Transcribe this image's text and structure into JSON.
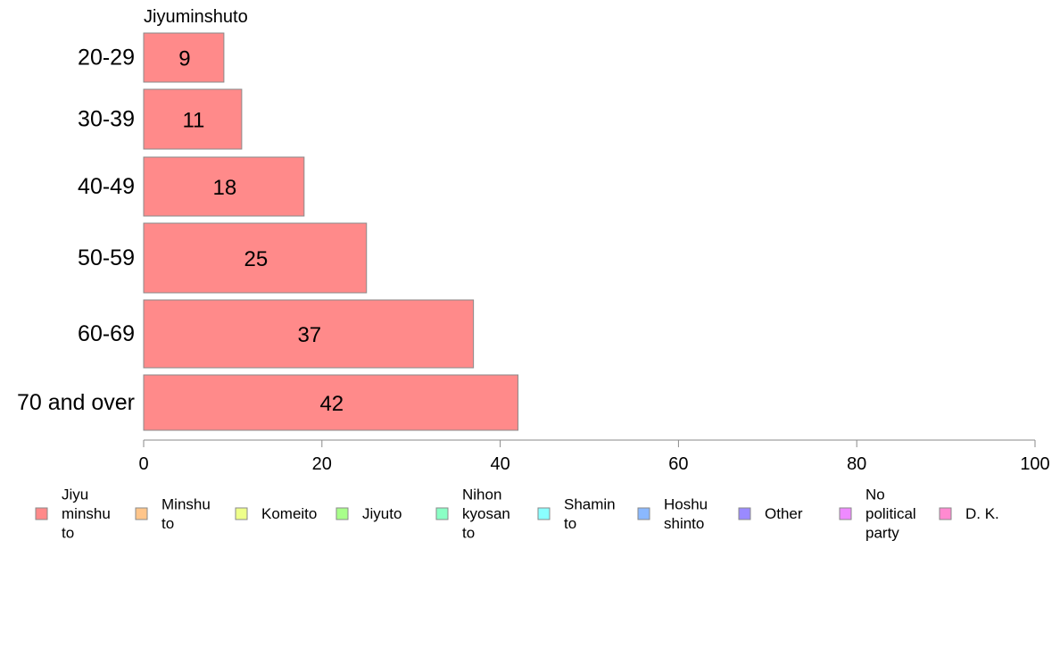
{
  "chart_data": {
    "type": "bar",
    "orientation": "horizontal",
    "title": "Jiyuminshuto",
    "categories": [
      "20-29",
      "30-39",
      "40-49",
      "50-59",
      "60-69",
      "70 and over"
    ],
    "series": [
      {
        "name": "Jiyuminshuto",
        "values": [
          9,
          11,
          18,
          25,
          37,
          42
        ],
        "color": "#ff8a8a"
      }
    ],
    "xlim": [
      0,
      100
    ],
    "xticks": [
      0,
      20,
      40,
      60,
      80,
      100
    ],
    "grid": false,
    "legend_position": "bottom",
    "legend": [
      {
        "label": [
          "Jiyu",
          "minshu",
          "to"
        ],
        "color": "#ff8a8a"
      },
      {
        "label": [
          "Minshu",
          "to"
        ],
        "color": "#ffc58a"
      },
      {
        "label": [
          "Komeito"
        ],
        "color": "#eeff8a"
      },
      {
        "label": [
          "Jiyuto"
        ],
        "color": "#a8ff8a"
      },
      {
        "label": [
          "Nihon",
          "kyosan",
          "to"
        ],
        "color": "#8affc5"
      },
      {
        "label": [
          "Shamin",
          "to"
        ],
        "color": "#8affff"
      },
      {
        "label": [
          "Hoshu",
          "shinto"
        ],
        "color": "#8ab8ff"
      },
      {
        "label": [
          "Other"
        ],
        "color": "#9a8aff"
      },
      {
        "label": [
          "No",
          "political",
          "party"
        ],
        "color": "#ee8aff"
      },
      {
        "label": [
          "D. K."
        ],
        "color": "#ff8ad0"
      }
    ]
  }
}
